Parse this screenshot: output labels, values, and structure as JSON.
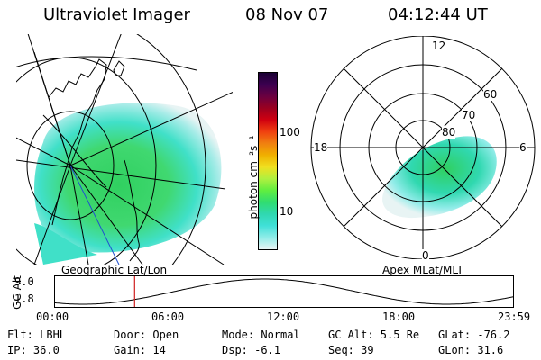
{
  "header": {
    "title": "Ultraviolet Imager",
    "date": "08 Nov 07",
    "time": "04:12:44 UT"
  },
  "geo_panel": {
    "label": "Geographic Lat/Lon"
  },
  "apex_panel": {
    "label": "Apex MLat/MLT",
    "mlt_labels": {
      "top": "12",
      "left": "18",
      "right": "6",
      "bottom": "0"
    },
    "lat_labels": [
      "60",
      "70",
      "80"
    ]
  },
  "colorbar": {
    "unit_label": "photon cm⁻²s⁻¹",
    "ticks": [
      "100",
      "10"
    ],
    "colors": [
      "#1a0033",
      "#3c0050",
      "#6a0040",
      "#9a0020",
      "#d00010",
      "#f04010",
      "#f08010",
      "#f0b000",
      "#f0e020",
      "#b0f040",
      "#60ee40",
      "#30dd70",
      "#30d8b0",
      "#40e0d8",
      "#90ece8",
      "#e8f4f4"
    ]
  },
  "timeline": {
    "axis_label": "GC Alt",
    "y_top": "9.0",
    "y_bottom": "1.8",
    "x_ticks": [
      "00:00",
      "06:00",
      "12:00",
      "18:00",
      "23:59"
    ],
    "marker_time": "04:12",
    "ymin": 1.8,
    "ymax": 9.0
  },
  "status": {
    "flt": "Flt: LBHL",
    "ip": "IP: 36.0",
    "door": "Door: Open",
    "gain": "Gain: 14",
    "mode": "Mode: Normal",
    "dsp": "Dsp:   -6.1",
    "gc_alt": "GC Alt: 5.5 Re",
    "seq": "Seq: 39",
    "glat": "GLat: -76.2",
    "glon": "GLon:  31.6"
  }
}
